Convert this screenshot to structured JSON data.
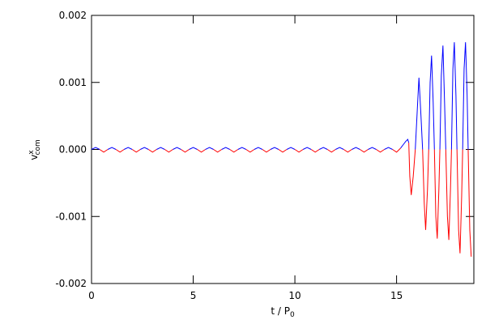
{
  "chart_data": {
    "type": "line",
    "xlabel": {
      "text": "t / P",
      "sub": "0"
    },
    "ylabel": {
      "text": "v",
      "sup": "x",
      "sub": "com"
    },
    "xlim": [
      0,
      18.8
    ],
    "ylim": [
      -0.002,
      0.002
    ],
    "xticks": [
      0,
      5,
      10,
      15
    ],
    "yticks": [
      -0.002,
      -0.001,
      {
        "value": 0,
        "label": "0.000"
      },
      0.001,
      0.002
    ],
    "color_positive": "#0000ff",
    "color_negative": "#ff0000",
    "x": [
      0,
      0.2,
      0.4,
      0.6,
      0.8,
      1,
      1.2,
      1.4,
      1.6,
      1.8,
      2,
      2.2,
      2.4,
      2.6,
      2.8,
      3,
      3.2,
      3.4,
      3.6,
      3.8,
      4,
      4.2,
      4.4,
      4.6,
      4.8,
      5,
      5.2,
      5.4,
      5.6,
      5.8,
      6,
      6.2,
      6.4,
      6.6,
      6.8,
      7,
      7.2,
      7.4,
      7.6,
      7.8,
      8,
      8.2,
      8.4,
      8.6,
      8.8,
      9,
      9.2,
      9.4,
      9.6,
      9.8,
      10,
      10.2,
      10.4,
      10.6,
      10.8,
      11,
      11.2,
      11.4,
      11.6,
      11.8,
      12,
      12.2,
      12.4,
      12.6,
      12.8,
      13,
      13.2,
      13.4,
      13.6,
      13.8,
      14,
      14.2,
      14.4,
      14.6,
      14.8,
      15,
      15.2,
      15.35,
      15.45,
      15.55,
      15.6,
      15.65,
      15.72,
      15.82,
      15.92,
      16.02,
      16.1,
      16.2,
      16.28,
      16.36,
      16.43,
      16.52,
      16.58,
      16.65,
      16.72,
      16.8,
      16.86,
      16.93,
      17,
      17.08,
      17.13,
      17.2,
      17.28,
      17.36,
      17.42,
      17.5,
      17.57,
      17.65,
      17.7,
      17.77,
      17.84,
      17.92,
      17.97,
      18.05,
      18.12,
      18.2,
      18.25,
      18.32,
      18.39,
      18.47,
      18.52,
      18.6,
      18.67
    ],
    "values": [
      0,
      3e-05,
      0,
      -4e-05,
      0,
      3e-05,
      0,
      -4e-05,
      0,
      3e-05,
      0,
      -4e-05,
      0,
      3e-05,
      0,
      -4e-05,
      0,
      3e-05,
      0,
      -4e-05,
      0,
      3e-05,
      0,
      -4e-05,
      0,
      3e-05,
      0,
      -4e-05,
      0,
      3e-05,
      0,
      -4e-05,
      0,
      3e-05,
      0,
      -4e-05,
      0,
      3e-05,
      0,
      -4e-05,
      0,
      3e-05,
      0,
      -4e-05,
      0,
      3e-05,
      0,
      -4e-05,
      0,
      3e-05,
      0,
      -4e-05,
      0,
      3e-05,
      0,
      -4e-05,
      0,
      3e-05,
      0,
      -4e-05,
      0,
      3e-05,
      0,
      -4e-05,
      0,
      3e-05,
      0,
      -4e-05,
      0,
      3e-05,
      0,
      -4e-05,
      0,
      3e-05,
      0,
      -4e-05,
      2e-05,
      8e-05,
      0.00012,
      0.00015,
      0.0001,
      -0.0004,
      -0.00068,
      -0.0004,
      0,
      0.0006,
      0.00107,
      0.0005,
      0,
      -0.0008,
      -0.0012,
      -0.0006,
      0,
      0.001,
      0.0014,
      0.0007,
      0,
      -0.001,
      -0.00133,
      -0.0006,
      0,
      0.0011,
      0.00155,
      0.0007,
      0,
      -0.001,
      -0.00135,
      -0.0006,
      0,
      0.0012,
      0.0016,
      0.0008,
      0,
      -0.0012,
      -0.00155,
      -0.0007,
      0,
      0.0012,
      0.0016,
      0.0008,
      0,
      -0.0012,
      -0.0016
    ]
  }
}
